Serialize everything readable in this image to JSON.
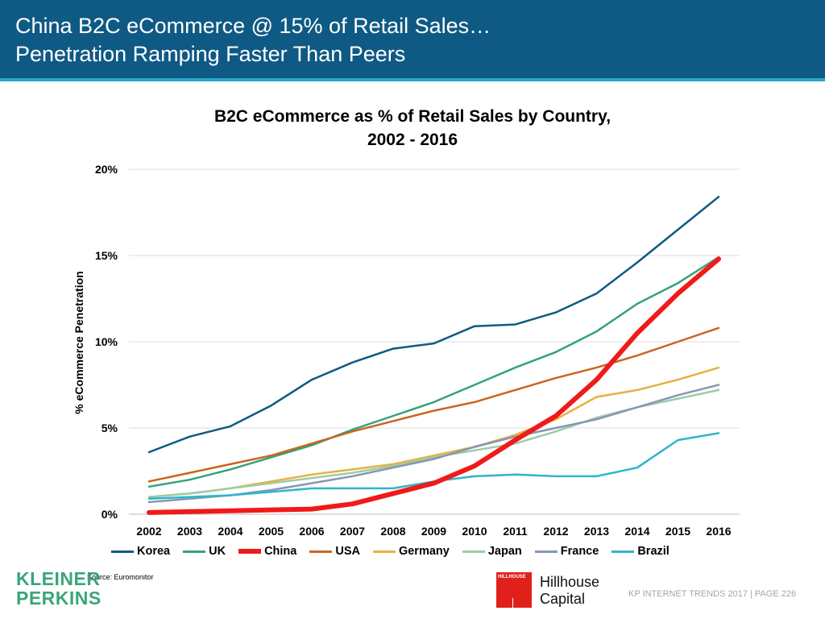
{
  "header": {
    "title_line1": "China B2C eCommerce @ 15% of Retail Sales…",
    "title_line2": "Penetration Ramping Faster Than Peers",
    "background_color": "#0f5a84",
    "accent_color": "#2aa6c8"
  },
  "chart_data": {
    "type": "line",
    "title_line1": "B2C eCommerce as % of Retail Sales by Country,",
    "title_line2": "2002 - 2016",
    "xlabel": "",
    "ylabel": "% eCommerce Penetration",
    "x": [
      "2002",
      "2003",
      "2004",
      "2005",
      "2006",
      "2007",
      "2008",
      "2009",
      "2010",
      "2011",
      "2012",
      "2013",
      "2014",
      "2015",
      "2016"
    ],
    "ylim": [
      0,
      20
    ],
    "yticks": [
      0,
      5,
      10,
      15,
      20
    ],
    "ytick_labels": [
      "0%",
      "5%",
      "10%",
      "15%",
      "20%"
    ],
    "grid": true,
    "legend_position": "bottom",
    "series": [
      {
        "name": "Korea",
        "color": "#0f5a84",
        "width": 2.5,
        "values": [
          3.6,
          4.5,
          5.1,
          6.3,
          7.8,
          8.8,
          9.6,
          9.9,
          10.9,
          11.0,
          11.7,
          12.8,
          14.6,
          16.5,
          18.4
        ]
      },
      {
        "name": "UK",
        "color": "#34a27b",
        "width": 2.5,
        "values": [
          1.6,
          2.0,
          2.6,
          3.3,
          4.0,
          4.9,
          5.7,
          6.5,
          7.5,
          8.5,
          9.4,
          10.6,
          12.2,
          13.4,
          14.9
        ]
      },
      {
        "name": "China",
        "color": "#f01a1a",
        "width": 6,
        "values": [
          0.1,
          0.15,
          0.2,
          0.25,
          0.3,
          0.6,
          1.2,
          1.8,
          2.8,
          4.3,
          5.7,
          7.8,
          10.5,
          12.8,
          14.8
        ]
      },
      {
        "name": "USA",
        "color": "#c8661e",
        "width": 2.5,
        "values": [
          1.9,
          2.4,
          2.9,
          3.4,
          4.1,
          4.8,
          5.4,
          6.0,
          6.5,
          7.2,
          7.9,
          8.5,
          9.2,
          10.0,
          10.8
        ]
      },
      {
        "name": "Germany",
        "color": "#e8b040",
        "width": 2.5,
        "values": [
          1.0,
          1.2,
          1.5,
          1.9,
          2.3,
          2.6,
          2.9,
          3.4,
          3.9,
          4.6,
          5.5,
          6.8,
          7.2,
          7.8,
          8.5
        ]
      },
      {
        "name": "Japan",
        "color": "#9ccca8",
        "width": 2.5,
        "values": [
          1.0,
          1.2,
          1.5,
          1.8,
          2.1,
          2.4,
          2.8,
          3.3,
          3.7,
          4.1,
          4.8,
          5.6,
          6.2,
          6.7,
          7.2
        ]
      },
      {
        "name": "France",
        "color": "#8796b3",
        "width": 2.5,
        "values": [
          0.7,
          0.9,
          1.1,
          1.4,
          1.8,
          2.2,
          2.7,
          3.2,
          3.9,
          4.5,
          5.0,
          5.5,
          6.2,
          6.9,
          7.5
        ]
      },
      {
        "name": "Brazil",
        "color": "#2db6c9",
        "width": 2.5,
        "values": [
          0.9,
          1.0,
          1.1,
          1.3,
          1.5,
          1.5,
          1.5,
          1.9,
          2.2,
          2.3,
          2.2,
          2.2,
          2.7,
          4.3,
          4.7
        ]
      }
    ]
  },
  "footer": {
    "source": "Source: Euromonitor",
    "kp_logo_line1": "KLEINER",
    "kp_logo_line2": "PERKINS",
    "hillhouse_box_text": "HILLHOUSE",
    "hillhouse_name_line1": "Hillhouse",
    "hillhouse_name_line2": "Capital",
    "page_text": "KP INTERNET TRENDS 2017   |   PAGE 226",
    "kp_color": "#3aa57a",
    "hillhouse_color": "#e0201b"
  }
}
